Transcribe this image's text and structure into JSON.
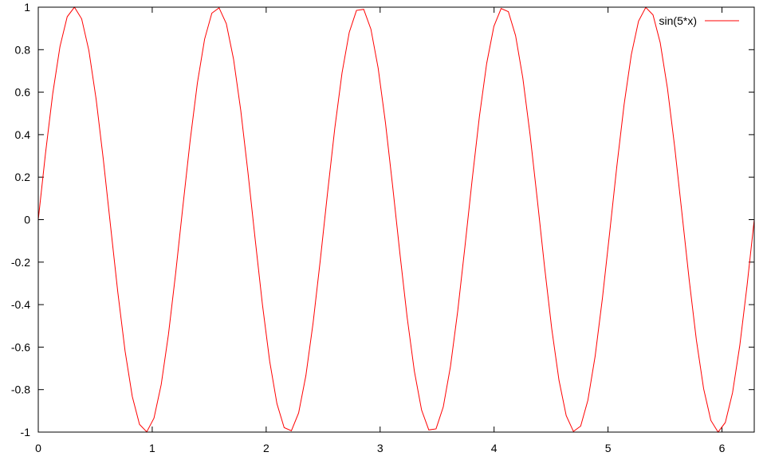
{
  "chart_data": {
    "type": "line",
    "title": "",
    "xlabel": "",
    "ylabel": "",
    "xlim": [
      0,
      6.283185307
    ],
    "ylim": [
      -1,
      1
    ],
    "x_ticks": [
      0,
      1,
      2,
      3,
      4,
      5,
      6
    ],
    "x_tick_labels": [
      "0",
      "1",
      "2",
      "3",
      "4",
      "5",
      "6"
    ],
    "y_ticks": [
      -1,
      -0.8,
      -0.6,
      -0.4,
      -0.2,
      0,
      0.2,
      0.4,
      0.6,
      0.8,
      1
    ],
    "y_tick_labels": [
      "-1",
      "-0.8",
      "-0.6",
      "-0.4",
      "-0.2",
      "0",
      "0.2",
      "0.4",
      "0.6",
      "0.8",
      "1"
    ],
    "grid": false,
    "legend_position": "top-right",
    "series": [
      {
        "name": "sin(5*x)",
        "function": "sin(5*x)",
        "samples": 100,
        "color": "#ff0000"
      }
    ]
  }
}
